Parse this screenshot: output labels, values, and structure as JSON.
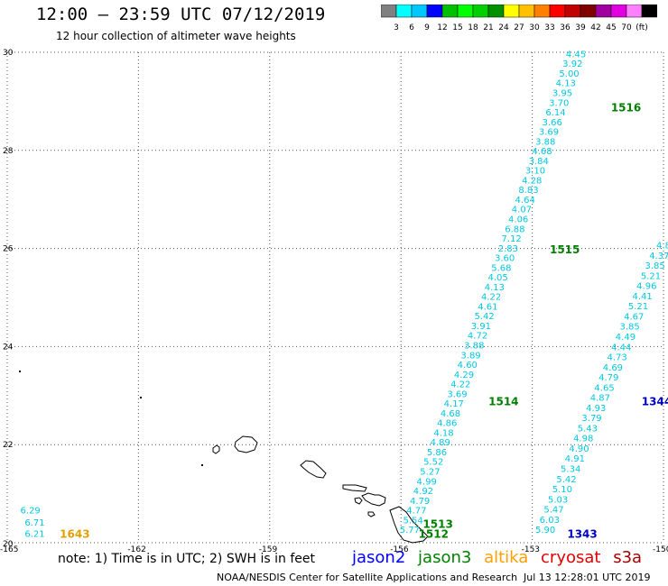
{
  "header": {
    "title": "12:00 – 23:59 UTC 07/12/2019",
    "subtitle": "12 hour collection of altimeter wave heights"
  },
  "legend": {
    "swatches": [
      {
        "label": "",
        "color": "#808080"
      },
      {
        "label": "3",
        "color": "#00ffff"
      },
      {
        "label": "6",
        "color": "#00c8ff"
      },
      {
        "label": "9",
        "color": "#0000ff"
      },
      {
        "label": "12",
        "color": "#00c000"
      },
      {
        "label": "15",
        "color": "#00ff00"
      },
      {
        "label": "18",
        "color": "#00d000"
      },
      {
        "label": "21",
        "color": "#009000"
      },
      {
        "label": "24",
        "color": "#ffff00"
      },
      {
        "label": "27",
        "color": "#ffc000"
      },
      {
        "label": "30",
        "color": "#ff8000"
      },
      {
        "label": "33",
        "color": "#ff0000"
      },
      {
        "label": "36",
        "color": "#c00000"
      },
      {
        "label": "39",
        "color": "#800000"
      },
      {
        "label": "42",
        "color": "#a000a0"
      },
      {
        "label": "45",
        "color": "#e000e0"
      },
      {
        "label": "70",
        "color": "#ff80ff"
      },
      {
        "label": "(ft)",
        "color": "#000000"
      }
    ]
  },
  "axes": {
    "lon_labels": [
      "-165",
      "-162",
      "-159",
      "-156",
      "-153",
      "-150"
    ],
    "lat_labels": [
      "20",
      "22",
      "24",
      "26",
      "28",
      "30"
    ],
    "lon_range": [
      -165,
      -150
    ],
    "lat_range": [
      20,
      30
    ],
    "grid": "dotted"
  },
  "tracks": [
    {
      "lon_start": -155.8,
      "lat_start": 20.2,
      "lon_end": -152.0,
      "lat_end": 29.9,
      "color": "#00c8e0",
      "values": [
        "5.77",
        "5.54",
        "4.77",
        "4.79",
        "4.92",
        "4.99",
        "5.27",
        "5.52",
        "5.86",
        "4.89",
        "4.18",
        "4.86",
        "4.68",
        "4.17",
        "3.69",
        "4.22",
        "4.29",
        "4.60",
        "3.89",
        "3.88",
        "4.72",
        "3.91",
        "5.42",
        "4.61",
        "4.22",
        "4.13",
        "4.05",
        "5.68",
        "3.60",
        "2.83",
        "7.12",
        "6.88",
        "4.06",
        "4.07",
        "4.64",
        "8.83",
        "4.28",
        "3.10",
        "3.84",
        "4.68",
        "3.88",
        "3.69",
        "3.66",
        "6.14",
        "3.70",
        "3.95",
        "4.13",
        "5.00",
        "3.92",
        "4.45"
      ]
    },
    {
      "lon_start": -152.7,
      "lat_start": 20.2,
      "lon_end": -150.0,
      "lat_end": 26.0,
      "color": "#00c8e0",
      "values": [
        "5.90",
        "6.03",
        "5.47",
        "5.03",
        "5.10",
        "5.42",
        "5.34",
        "4.91",
        "4.90",
        "4.98",
        "5.43",
        "3.79",
        "4.93",
        "4.87",
        "4.65",
        "4.79",
        "4.69",
        "4.73",
        "4.44",
        "4.49",
        "3.85",
        "4.67",
        "5.21",
        "4.41",
        "4.96",
        "5.21",
        "3.85",
        "4.37",
        "4.8"
      ]
    }
  ],
  "track_ids": [
    {
      "label": "1516",
      "lon": -151.2,
      "lat": 28.8,
      "color": "#008000"
    },
    {
      "label": "1515",
      "lon": -152.6,
      "lat": 25.9,
      "color": "#008000"
    },
    {
      "label": "1514",
      "lon": -154.0,
      "lat": 22.8,
      "color": "#008000"
    },
    {
      "label": "1513",
      "lon": -155.5,
      "lat": 20.3,
      "color": "#008000"
    },
    {
      "label": "1512",
      "lon": -155.6,
      "lat": 20.1,
      "color": "#008000"
    },
    {
      "label": "1344",
      "lon": -150.5,
      "lat": 22.8,
      "color": "#0000c0"
    },
    {
      "label": "1343",
      "lon": -152.2,
      "lat": 20.1,
      "color": "#0000c0"
    },
    {
      "label": "1643",
      "lon": -163.8,
      "lat": 20.1,
      "color": "#e0a000"
    }
  ],
  "left_values": [
    {
      "label": "6.29",
      "lon": -164.7,
      "lat": 20.6
    },
    {
      "label": "6.71",
      "lon": -164.6,
      "lat": 20.35
    },
    {
      "label": "6.21",
      "lon": -164.6,
      "lat": 20.12
    }
  ],
  "footer": {
    "note": "note: 1) Time is in UTC; 2) SWH is in feet",
    "satellites": [
      {
        "name": "jason2",
        "color": "#0000ff"
      },
      {
        "name": "jason3",
        "color": "#008000"
      },
      {
        "name": "altika",
        "color": "#ffa000"
      },
      {
        "name": "cryosat",
        "color": "#e00000"
      },
      {
        "name": "s3a",
        "color": "#a00000"
      }
    ],
    "credit": "NOAA/NESDIS Center for Satellite Applications and Research",
    "timestamp": "Jul 13 12:28:01 UTC 2019"
  }
}
